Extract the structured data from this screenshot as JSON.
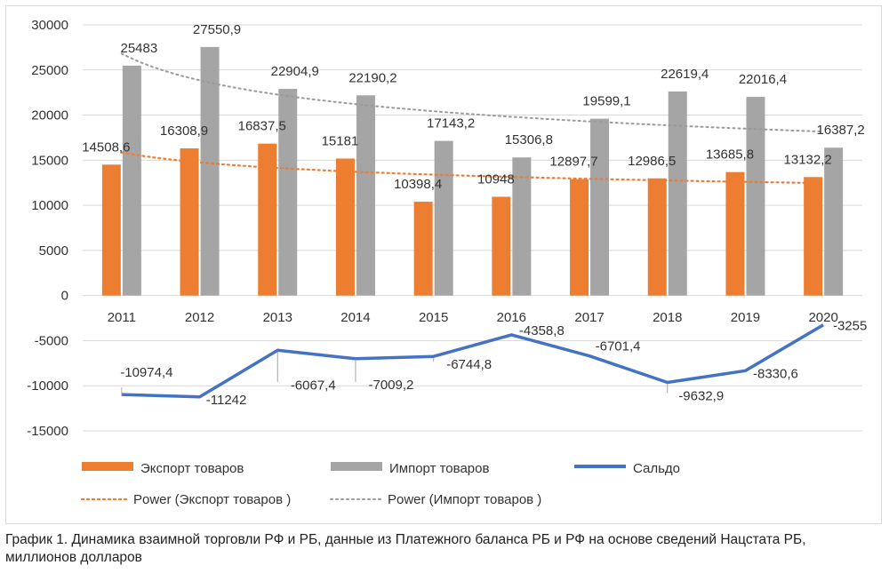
{
  "caption": "График 1. Динамика взаимной торговли РФ и РБ, данные из Платежного баланса РБ и РФ на основе сведений Нацстата РБ, миллионов долларов",
  "chart_data": {
    "type": "bar",
    "categories": [
      "2011",
      "2012",
      "2013",
      "2014",
      "2015",
      "2016",
      "2017",
      "2018",
      "2019",
      "2020"
    ],
    "ylim": [
      -15000,
      30000
    ],
    "yticks": [
      -15000,
      -10000,
      -5000,
      0,
      5000,
      10000,
      15000,
      20000,
      25000,
      30000
    ],
    "ytick_labels": [
      "-15000",
      "-10000",
      "-5000",
      "0",
      "5000",
      "10000",
      "15000",
      "20000",
      "25000",
      "30000"
    ],
    "grid": true,
    "legend_position": "bottom",
    "series": [
      {
        "name": "Экспорт товаров",
        "type": "bar",
        "color": "#ED7D31",
        "values": [
          14508.6,
          16308.9,
          16837.5,
          15181,
          10398.4,
          10948,
          12897.7,
          12986.5,
          13685.8,
          13132.2
        ],
        "labels": [
          "14508,6",
          "16308,9",
          "16837,5",
          "15181",
          "10398,4",
          "10948",
          "12897,7",
          "12986,5",
          "13685,8",
          "13132,2"
        ]
      },
      {
        "name": "Импорт товаров",
        "type": "bar",
        "color": "#A5A5A5",
        "values": [
          25483,
          27550.9,
          22904.9,
          22190.2,
          17143.2,
          15306.8,
          19599.1,
          22619.4,
          22016.4,
          16387.2
        ],
        "labels": [
          "25483",
          "27550,9",
          "22904,9",
          "22190,2",
          "17143,2",
          "15306,8",
          "19599,1",
          "22619,4",
          "22016,4",
          "16387,2"
        ]
      },
      {
        "name": "Сальдо",
        "type": "line",
        "color": "#4472C4",
        "values": [
          -10974.4,
          -11242,
          -6067.4,
          -7009.2,
          -6744.8,
          -4358.8,
          -6701.4,
          -9632.9,
          -8330.6,
          -3255
        ],
        "labels": [
          "-10974,4",
          "-11242",
          "-6067,4",
          "-7009,2",
          "-6744,8",
          "-4358,8",
          "-6701,4",
          "-9632,9",
          "-8330,6",
          "-3255"
        ]
      }
    ],
    "trendlines": [
      {
        "name": "Power (Экспорт товаров )",
        "type": "power",
        "source_series": "Экспорт товаров",
        "color": "#ED7D31",
        "style": "dotted"
      },
      {
        "name": "Power (Импорт товаров )",
        "type": "power",
        "source_series": "Импорт товаров",
        "color": "#A5A5A5",
        "style": "dotted"
      }
    ]
  }
}
